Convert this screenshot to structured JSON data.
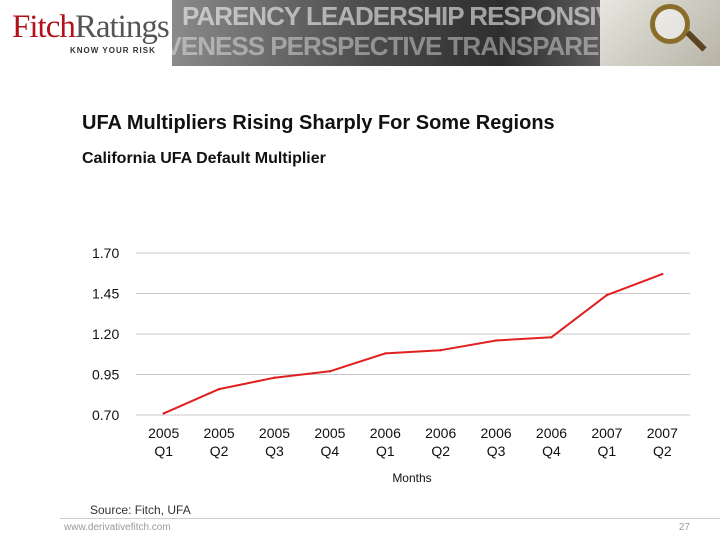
{
  "header": {
    "logo_fitch": "Fitch",
    "logo_ratings": "Ratings",
    "logo_tagline": "KNOW YOUR RISK",
    "banner_row1": "PARENCY LEADERSHIP RESPONSIVENESS",
    "banner_row2": "SIVENESS PERSPECTIVE TRANSPARENCY"
  },
  "slide": {
    "title": "UFA Multipliers Rising Sharply For Some Regions",
    "subtitle": "California UFA Default Multiplier",
    "source": "Source: Fitch, UFA"
  },
  "footer": {
    "url": "www.derivativefitch.com",
    "page": "27"
  },
  "chart_data": {
    "type": "line",
    "title": "",
    "xlabel": "Months",
    "ylabel": "",
    "categories": [
      "2005 Q1",
      "2005 Q2",
      "2005 Q3",
      "2005 Q4",
      "2006 Q1",
      "2006 Q2",
      "2006 Q3",
      "2006 Q4",
      "2007 Q1",
      "2007 Q2"
    ],
    "category_lines": [
      [
        "2005",
        "Q1"
      ],
      [
        "2005",
        "Q2"
      ],
      [
        "2005",
        "Q3"
      ],
      [
        "2005",
        "Q4"
      ],
      [
        "2006",
        "Q1"
      ],
      [
        "2006",
        "Q2"
      ],
      [
        "2006",
        "Q3"
      ],
      [
        "2006",
        "Q4"
      ],
      [
        "2007",
        "Q1"
      ],
      [
        "2007",
        "Q2"
      ]
    ],
    "series": [
      {
        "values": [
          0.71,
          0.86,
          0.93,
          0.97,
          1.08,
          1.1,
          1.16,
          1.18,
          1.44,
          1.57
        ],
        "color": "#e02020"
      }
    ],
    "ylim": [
      0.7,
      1.7
    ],
    "yticks": [
      0.7,
      0.95,
      1.2,
      1.45,
      1.7
    ],
    "ytick_labels": [
      "0.70",
      "0.95",
      "1.20",
      "1.45",
      "1.70"
    ],
    "grid": true,
    "gridline_color": "#c8c8c8",
    "legend": "none"
  }
}
